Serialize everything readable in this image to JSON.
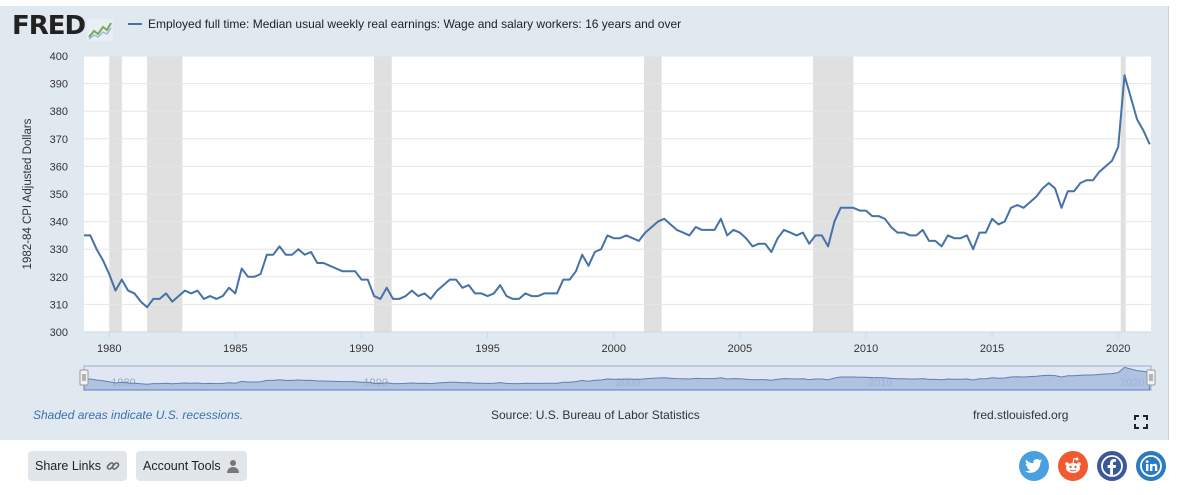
{
  "header": {
    "logo_text": "FRED",
    "legend_label": "Employed full time: Median usual weekly real earnings: Wage and salary workers: 16 years and over"
  },
  "footer": {
    "note": "Shaded areas indicate U.S. recessions.",
    "source": "Source: U.S. Bureau of Labor Statistics",
    "site": "fred.stlouisfed.org"
  },
  "buttons": {
    "share_links": "Share Links",
    "account_tools": "Account Tools"
  },
  "colors": {
    "series": "#4572a7",
    "recession": "#e0e0e0",
    "panel": "#e1e9f0",
    "navigator": "#b7c7e0"
  },
  "icons": [
    "fred-chart-icon",
    "link-icon",
    "user-icon",
    "fullscreen-icon",
    "twitter-icon",
    "reddit-icon",
    "facebook-icon",
    "linkedin-icon"
  ],
  "chart_data": {
    "type": "line",
    "title": "",
    "xlabel": "",
    "ylabel": "1982-84 CPI Adjusted Dollars",
    "xlim": [
      1979,
      2021.3
    ],
    "ylim": [
      300,
      400
    ],
    "y_ticks": [
      300,
      310,
      320,
      330,
      340,
      350,
      360,
      370,
      380,
      390,
      400
    ],
    "x_ticks": [
      1980,
      1985,
      1990,
      1995,
      2000,
      2005,
      2010,
      2015,
      2020
    ],
    "navigator_ticks": [
      1980,
      1990,
      2000,
      2010,
      2020
    ],
    "grid": true,
    "legend_position": "top-left",
    "recessions": [
      [
        1980.0,
        1980.5
      ],
      [
        1981.5,
        1982.9
      ],
      [
        1990.5,
        1991.2
      ],
      [
        2001.2,
        2001.9
      ],
      [
        2007.9,
        2009.5
      ],
      [
        2020.1,
        2020.3
      ]
    ],
    "series": [
      {
        "name": "Employed full time: Median usual weekly real earnings: Wage and salary workers: 16 years and over",
        "x": [
          1979.0,
          1979.25,
          1979.5,
          1979.75,
          1980.0,
          1980.25,
          1980.5,
          1980.75,
          1981.0,
          1981.25,
          1981.5,
          1981.75,
          1982.0,
          1982.25,
          1982.5,
          1982.75,
          1983.0,
          1983.25,
          1983.5,
          1983.75,
          1984.0,
          1984.25,
          1984.5,
          1984.75,
          1985.0,
          1985.25,
          1985.5,
          1985.75,
          1986.0,
          1986.25,
          1986.5,
          1986.75,
          1987.0,
          1987.25,
          1987.5,
          1987.75,
          1988.0,
          1988.25,
          1988.5,
          1988.75,
          1989.0,
          1989.25,
          1989.5,
          1989.75,
          1990.0,
          1990.25,
          1990.5,
          1990.75,
          1991.0,
          1991.25,
          1991.5,
          1991.75,
          1992.0,
          1992.25,
          1992.5,
          1992.75,
          1993.0,
          1993.25,
          1993.5,
          1993.75,
          1994.0,
          1994.25,
          1994.5,
          1994.75,
          1995.0,
          1995.25,
          1995.5,
          1995.75,
          1996.0,
          1996.25,
          1996.5,
          1996.75,
          1997.0,
          1997.25,
          1997.5,
          1997.75,
          1998.0,
          1998.25,
          1998.5,
          1998.75,
          1999.0,
          1999.25,
          1999.5,
          1999.75,
          2000.0,
          2000.25,
          2000.5,
          2000.75,
          2001.0,
          2001.25,
          2001.5,
          2001.75,
          2002.0,
          2002.25,
          2002.5,
          2002.75,
          2003.0,
          2003.25,
          2003.5,
          2003.75,
          2004.0,
          2004.25,
          2004.5,
          2004.75,
          2005.0,
          2005.25,
          2005.5,
          2005.75,
          2006.0,
          2006.25,
          2006.5,
          2006.75,
          2007.0,
          2007.25,
          2007.5,
          2007.75,
          2008.0,
          2008.25,
          2008.5,
          2008.75,
          2009.0,
          2009.25,
          2009.5,
          2009.75,
          2010.0,
          2010.25,
          2010.5,
          2010.75,
          2011.0,
          2011.25,
          2011.5,
          2011.75,
          2012.0,
          2012.25,
          2012.5,
          2012.75,
          2013.0,
          2013.25,
          2013.5,
          2013.75,
          2014.0,
          2014.25,
          2014.5,
          2014.75,
          2015.0,
          2015.25,
          2015.5,
          2015.75,
          2016.0,
          2016.25,
          2016.5,
          2016.75,
          2017.0,
          2017.25,
          2017.5,
          2017.75,
          2018.0,
          2018.25,
          2018.5,
          2018.75,
          2019.0,
          2019.25,
          2019.5,
          2019.75,
          2020.0,
          2020.25,
          2020.5,
          2020.75,
          2021.0,
          2021.25
        ],
        "values": [
          335,
          335,
          330,
          326,
          321,
          315,
          319,
          315,
          314,
          311,
          309,
          312,
          312,
          314,
          311,
          313,
          315,
          314,
          315,
          312,
          313,
          312,
          313,
          316,
          314,
          323,
          320,
          320,
          321,
          328,
          328,
          331,
          328,
          328,
          330,
          328,
          329,
          325,
          325,
          324,
          323,
          322,
          322,
          322,
          319,
          319,
          313,
          312,
          316,
          312,
          312,
          313,
          315,
          313,
          314,
          312,
          315,
          317,
          319,
          319,
          316,
          317,
          314,
          314,
          313,
          314,
          317,
          313,
          312,
          312,
          314,
          313,
          313,
          314,
          314,
          314,
          319,
          319,
          322,
          328,
          324,
          329,
          330,
          335,
          334,
          334,
          335,
          334,
          333,
          336,
          338,
          340,
          341,
          339,
          337,
          336,
          335,
          338,
          337,
          337,
          337,
          341,
          335,
          337,
          336,
          334,
          331,
          332,
          332,
          329,
          334,
          337,
          336,
          335,
          336,
          332,
          335,
          335,
          331,
          340,
          345,
          345,
          345,
          344,
          344,
          342,
          342,
          341,
          338,
          336,
          336,
          335,
          335,
          337,
          333,
          333,
          331,
          335,
          334,
          334,
          335,
          330,
          336,
          336,
          341,
          339,
          340,
          345,
          346,
          345,
          347,
          349,
          352,
          354,
          352,
          345,
          351,
          351,
          354,
          355,
          355,
          358,
          360,
          362,
          367,
          393,
          385,
          377,
          373,
          368
        ]
      }
    ]
  }
}
